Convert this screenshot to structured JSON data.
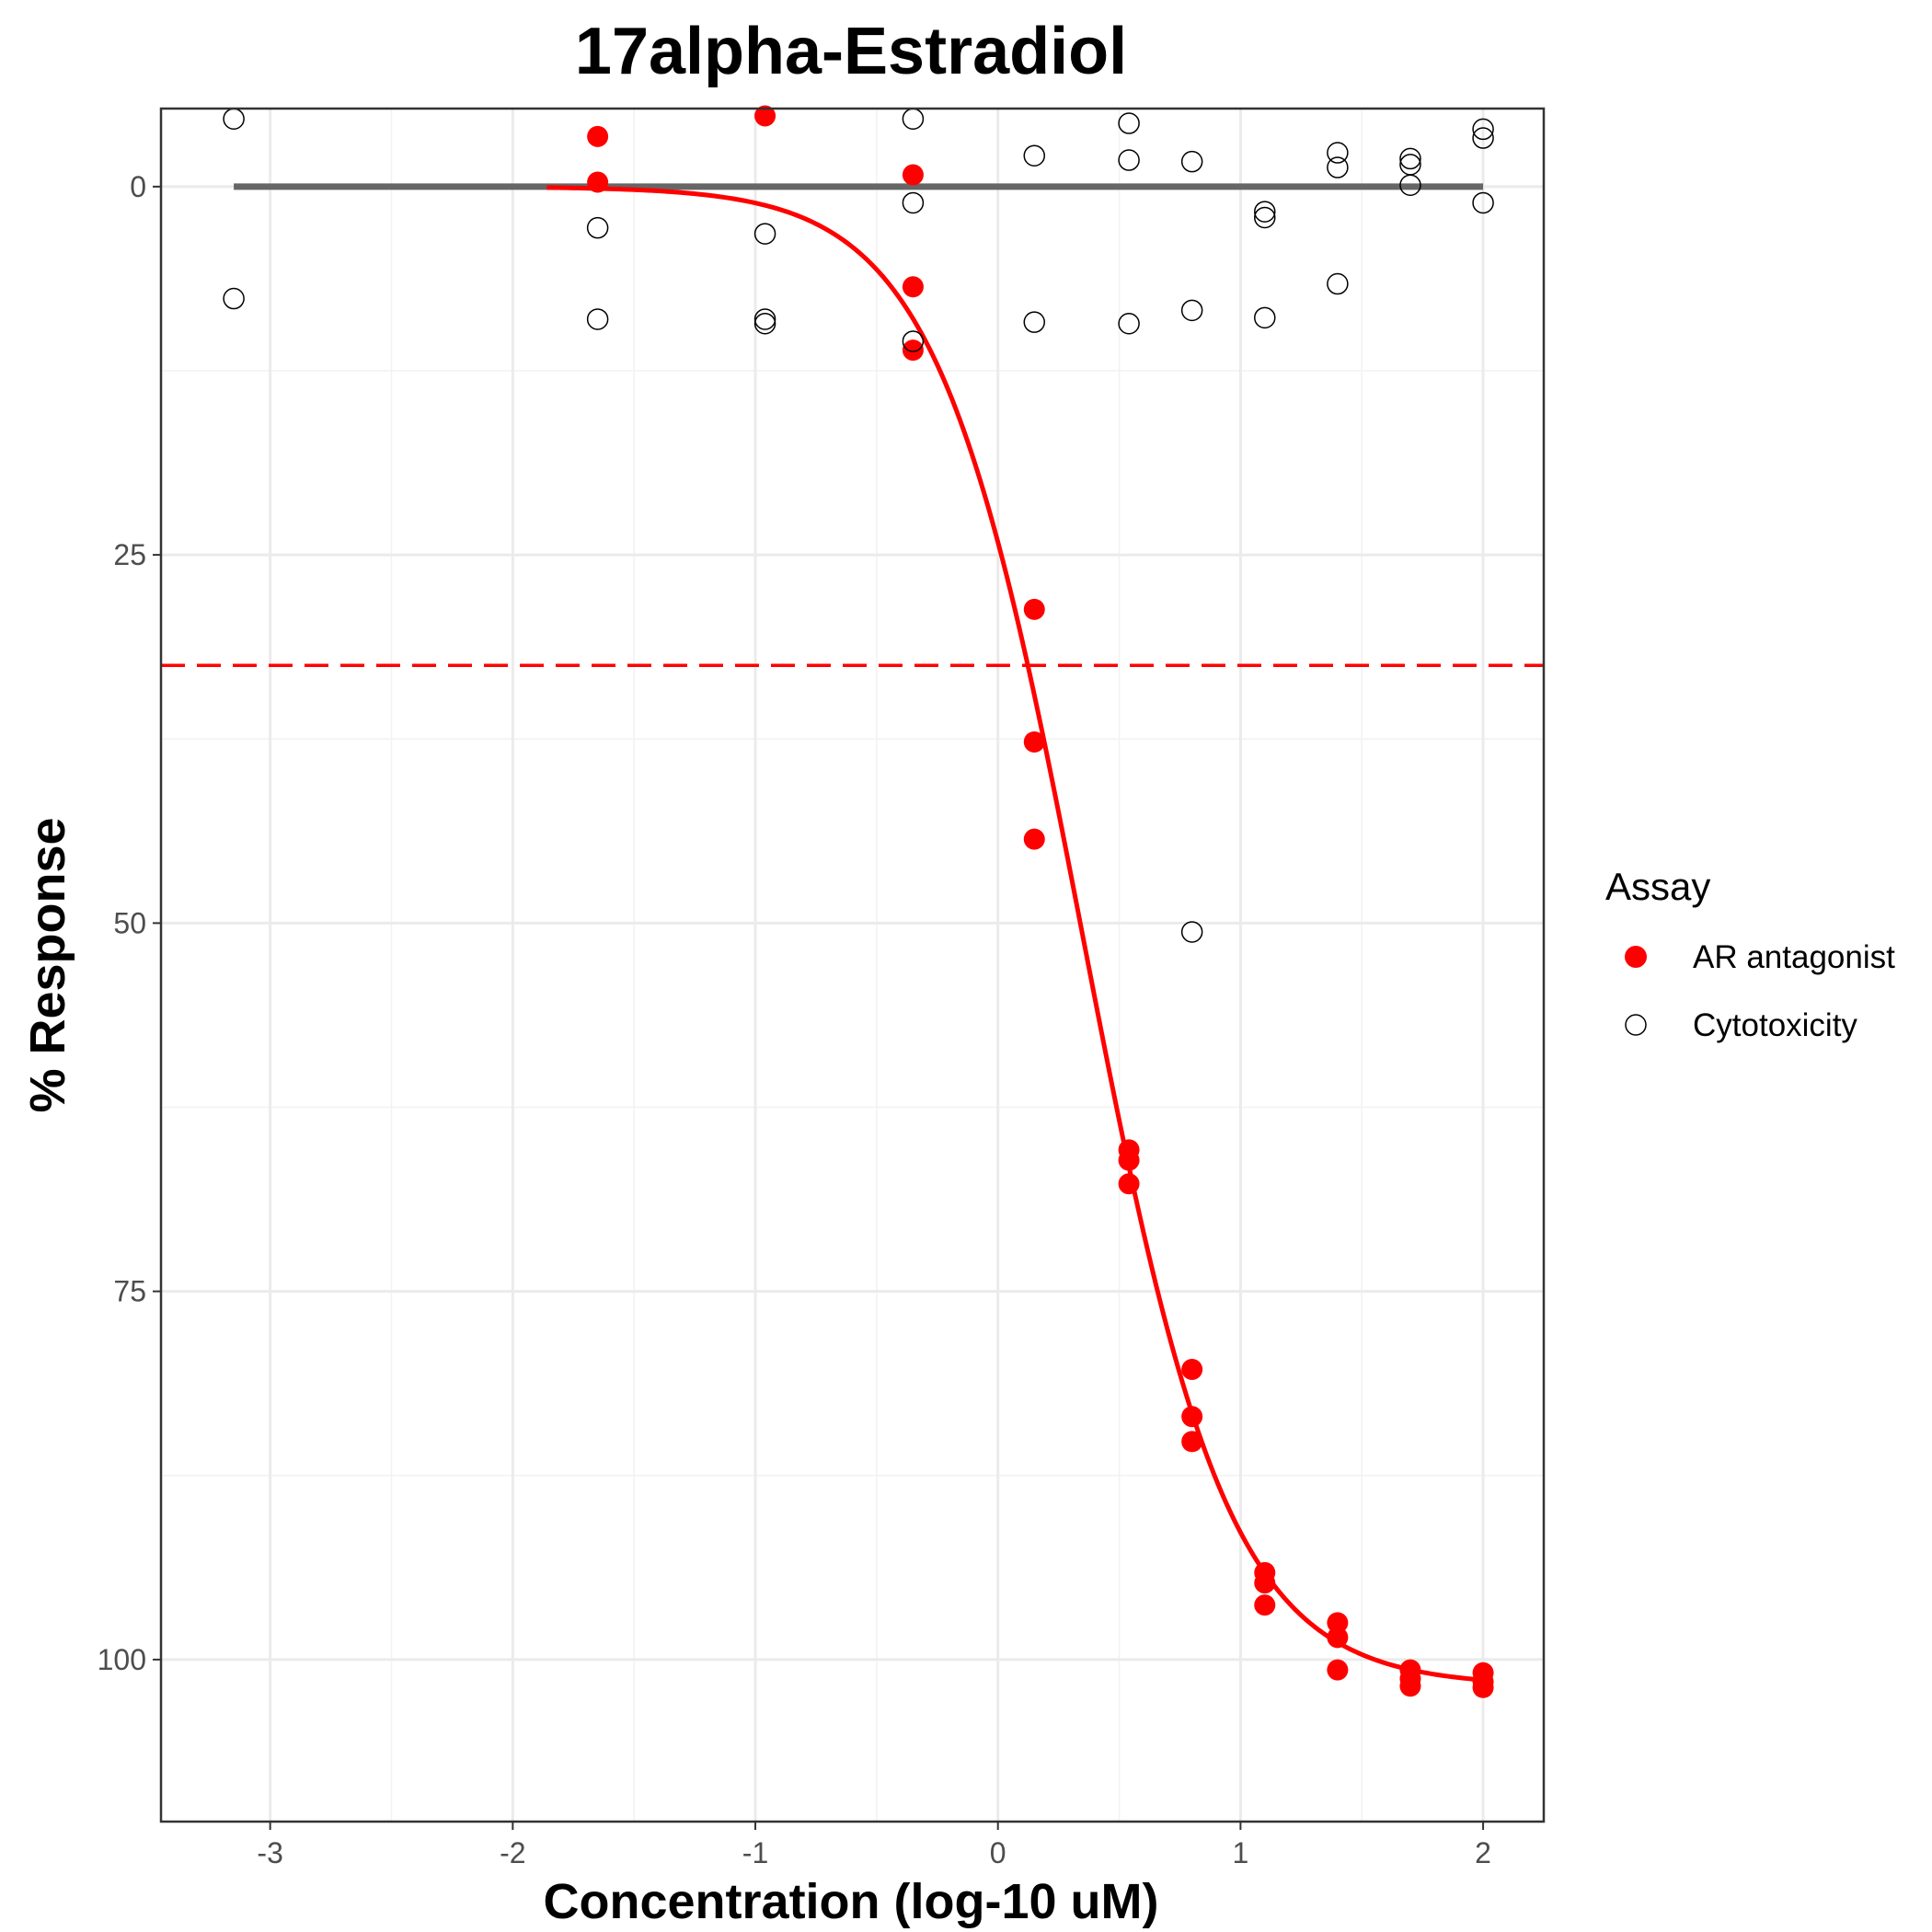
{
  "chart_data": {
    "type": "scatter",
    "title": "17alpha-Estradiol",
    "xlabel": "Concentration (log-10 uM)",
    "ylabel": "% Response",
    "xlim": [
      -3.45,
      2.25
    ],
    "ylim": [
      -5.3,
      111.0
    ],
    "y_reversed": true,
    "x_ticks": [
      -3,
      -2,
      -1,
      0,
      1,
      2
    ],
    "y_ticks": [
      0,
      25,
      50,
      75,
      100
    ],
    "grid": true,
    "legend": {
      "title": "Assay",
      "placement": "right",
      "entries": [
        {
          "label": "AR antagonist",
          "marker": "filled-circle",
          "color": "#ff0000"
        },
        {
          "label": "Cytotoxicity",
          "marker": "open-circle",
          "color": "#000000"
        }
      ]
    },
    "series": [
      {
        "name": "AR antagonist",
        "marker": "filled",
        "color": "#ff0000",
        "points": [
          [
            -1.65,
            -3.4
          ],
          [
            -1.65,
            -0.3
          ],
          [
            -0.96,
            -4.8
          ],
          [
            -0.35,
            -0.8
          ],
          [
            -0.35,
            6.8
          ],
          [
            -0.35,
            11.1
          ],
          [
            0.15,
            28.7
          ],
          [
            0.15,
            37.7
          ],
          [
            0.15,
            44.3
          ],
          [
            0.54,
            65.4
          ],
          [
            0.54,
            66.1
          ],
          [
            0.54,
            67.7
          ],
          [
            0.8,
            80.3
          ],
          [
            0.8,
            83.5
          ],
          [
            0.8,
            85.2
          ],
          [
            1.1,
            94.1
          ],
          [
            1.1,
            94.8
          ],
          [
            1.1,
            96.3
          ],
          [
            1.4,
            97.5
          ],
          [
            1.4,
            98.5
          ],
          [
            1.4,
            100.7
          ],
          [
            1.7,
            100.7
          ],
          [
            1.7,
            101.3
          ],
          [
            1.7,
            101.8
          ],
          [
            2.0,
            100.9
          ],
          [
            2.0,
            101.5
          ],
          [
            2.0,
            101.9
          ]
        ]
      },
      {
        "name": "Cytotoxicity",
        "marker": "open",
        "color": "#000000",
        "points": [
          [
            -3.15,
            -4.6
          ],
          [
            -3.15,
            7.6
          ],
          [
            -1.65,
            2.8
          ],
          [
            -1.65,
            9.0
          ],
          [
            -0.96,
            3.2
          ],
          [
            -0.96,
            9.0
          ],
          [
            -0.96,
            9.3
          ],
          [
            -0.35,
            -4.6
          ],
          [
            -0.35,
            1.1
          ],
          [
            -0.35,
            10.5
          ],
          [
            0.15,
            -2.1
          ],
          [
            0.15,
            9.2
          ],
          [
            0.54,
            -4.3
          ],
          [
            0.54,
            -1.8
          ],
          [
            0.54,
            9.3
          ],
          [
            0.8,
            -1.7
          ],
          [
            0.8,
            8.4
          ],
          [
            0.8,
            50.6
          ],
          [
            1.1,
            1.7
          ],
          [
            1.1,
            2.1
          ],
          [
            1.1,
            8.9
          ],
          [
            1.4,
            -2.3
          ],
          [
            1.4,
            -1.3
          ],
          [
            1.4,
            6.6
          ],
          [
            1.7,
            -1.9
          ],
          [
            1.7,
            -1.5
          ],
          [
            1.7,
            -0.1
          ],
          [
            2.0,
            -3.9
          ],
          [
            2.0,
            -3.3
          ],
          [
            2.0,
            1.1
          ]
        ]
      }
    ],
    "fit_curve": {
      "model": "hill",
      "top": 101.8,
      "bottom": 0,
      "ac50_log": 0.35,
      "hill_slope": 1.45,
      "x_range": [
        -1.86,
        2.0
      ],
      "color": "#ff0000"
    },
    "baseline": {
      "y": 0,
      "x_range": [
        -3.15,
        2.0
      ],
      "color": "#666666"
    },
    "cutoff_line": {
      "y": 32.5,
      "style": "dashed",
      "color": "#ff0000"
    }
  }
}
